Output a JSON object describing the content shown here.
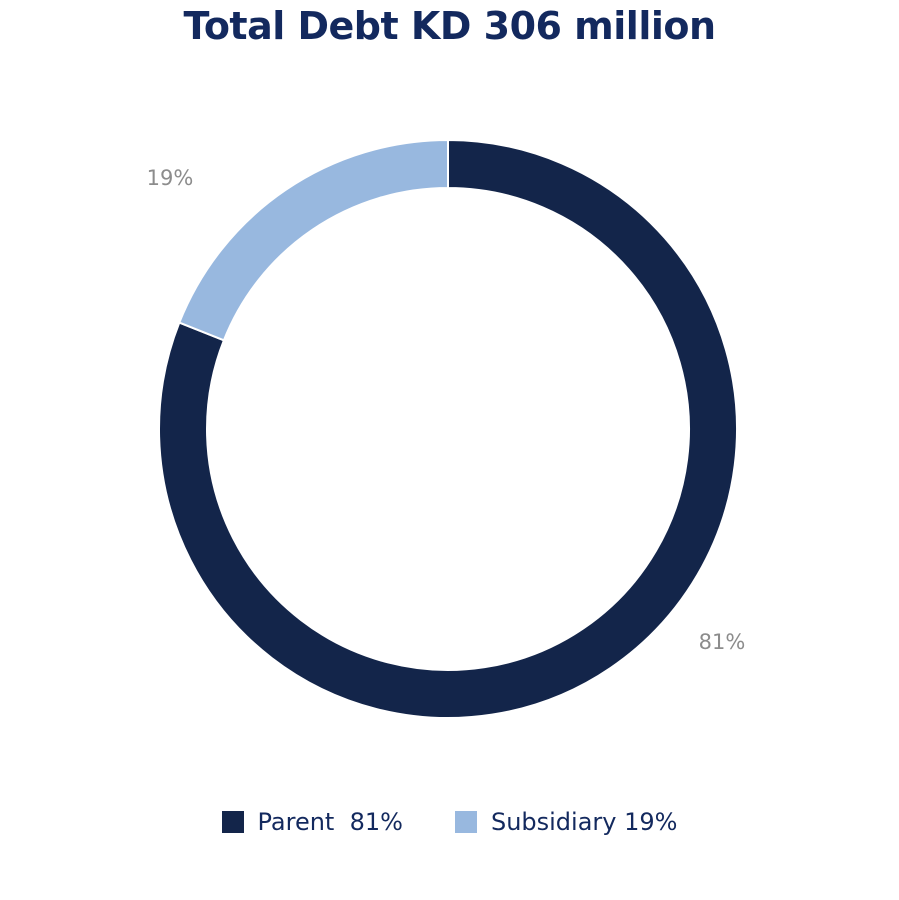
{
  "chart_data": {
    "type": "pie",
    "variant": "donut",
    "title": "Total Debt KD 306 million",
    "series": [
      {
        "name": "Parent",
        "value": 81,
        "label": "81%",
        "legend_text": "Parent  81%",
        "color": "#13254a"
      },
      {
        "name": "Subsidiary",
        "value": 19,
        "label": "19%",
        "legend_text": "Subsidiary 19%",
        "color": "#98b8df"
      }
    ],
    "start_angle_deg": 0,
    "direction": "clockwise",
    "legend_position": "bottom"
  }
}
